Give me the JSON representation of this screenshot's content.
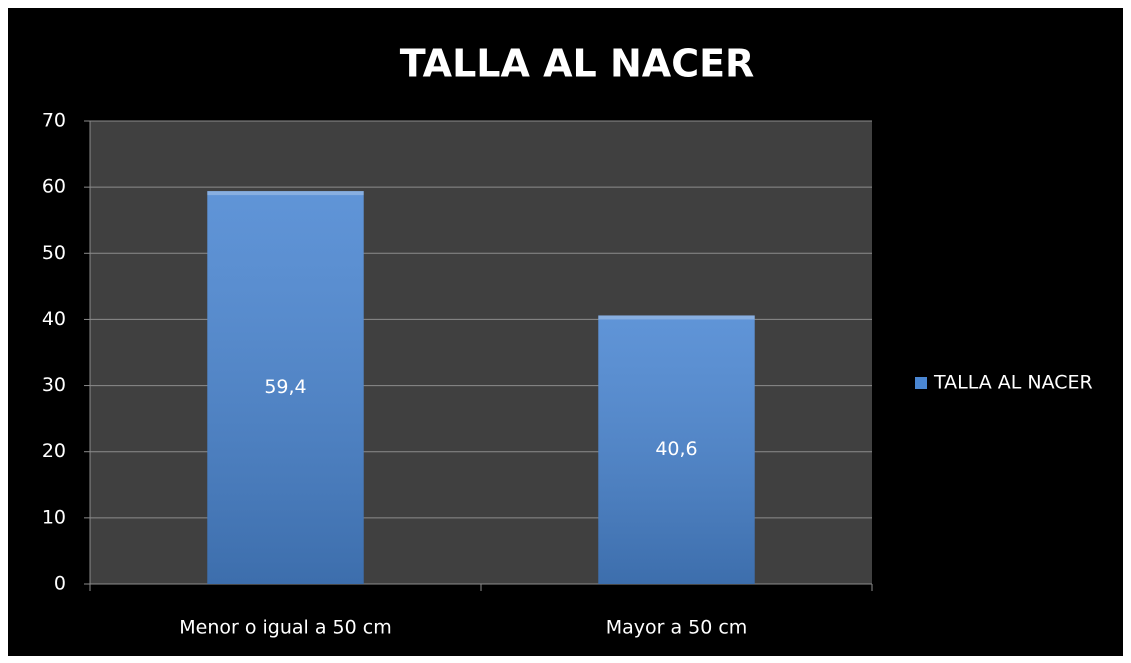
{
  "chart_data": {
    "type": "bar",
    "title": "TALLA AL NACER",
    "categories": [
      "Menor o igual a 50 cm",
      "Mayor a 50 cm"
    ],
    "series": [
      {
        "name": "TALLA AL NACER",
        "color": "#4a86d2",
        "values": [
          59.4,
          40.6
        ],
        "value_labels": [
          "59,4",
          "40,6"
        ]
      }
    ],
    "ylim": [
      0,
      70
    ],
    "yticks": [
      0,
      10,
      20,
      30,
      40,
      50,
      60,
      70
    ],
    "grid": true,
    "legend": "right"
  }
}
